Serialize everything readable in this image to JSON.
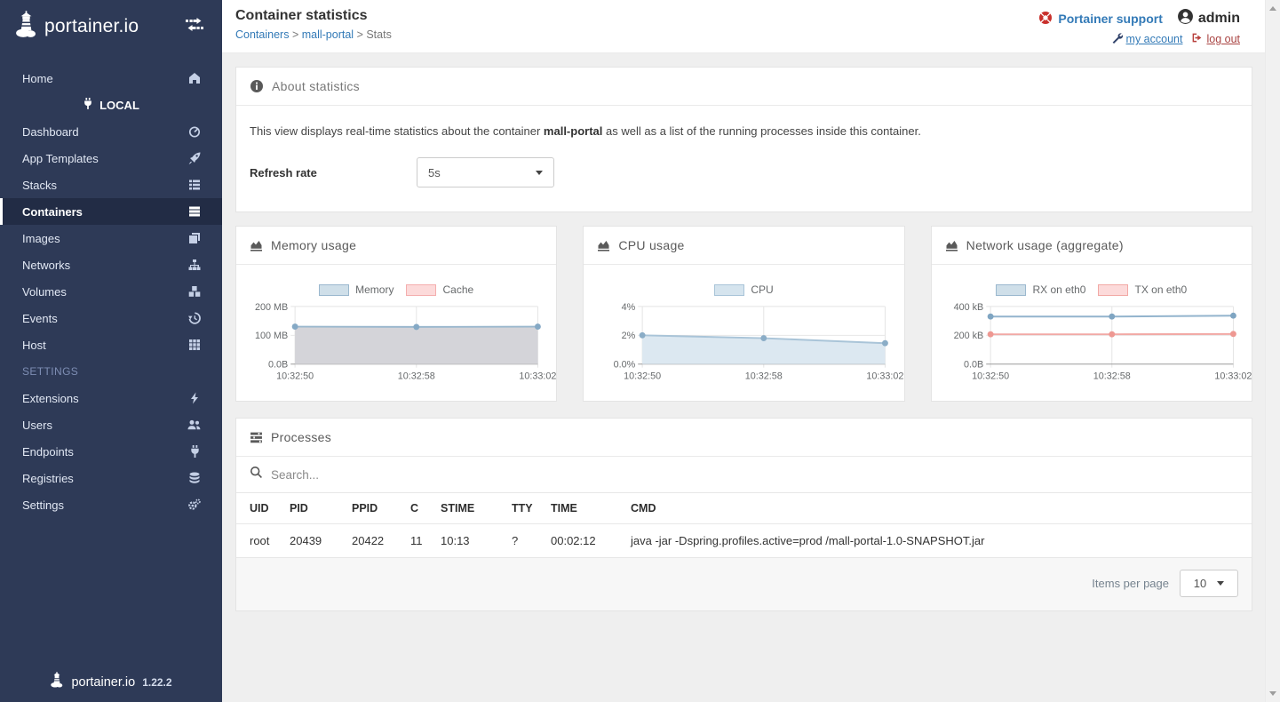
{
  "colors": {
    "sidebar_bg": "#2e3a57",
    "sidebar_active_bg": "#222c45",
    "link_blue": "#337ab7",
    "danger_red": "#a94442",
    "blue_series": "#9bb8ce",
    "red_series": "#f2a9a5"
  },
  "sidebar": {
    "brand": "portainer.io",
    "footer_brand": "portainer.io",
    "footer_version": "1.22.2",
    "items": [
      {
        "label": "Home",
        "icon": "home"
      },
      {
        "label": "LOCAL",
        "icon": "plug"
      },
      {
        "label": "Dashboard",
        "icon": "tachometer"
      },
      {
        "label": "App Templates",
        "icon": "rocket"
      },
      {
        "label": "Stacks",
        "icon": "th-list"
      },
      {
        "label": "Containers",
        "icon": "server",
        "active": true
      },
      {
        "label": "Images",
        "icon": "clone"
      },
      {
        "label": "Networks",
        "icon": "sitemap"
      },
      {
        "label": "Volumes",
        "icon": "cubes"
      },
      {
        "label": "Events",
        "icon": "history"
      },
      {
        "label": "Host",
        "icon": "th"
      },
      {
        "label": "SETTINGS",
        "icon": null
      },
      {
        "label": "Extensions",
        "icon": "bolt"
      },
      {
        "label": "Users",
        "icon": "users"
      },
      {
        "label": "Endpoints",
        "icon": "plug"
      },
      {
        "label": "Registries",
        "icon": "database"
      },
      {
        "label": "Settings",
        "icon": "cogs"
      }
    ]
  },
  "header": {
    "title": "Container statistics",
    "breadcrumb": [
      "Containers",
      "mall-portal",
      "Stats"
    ],
    "support_label": "Portainer support",
    "username": "admin",
    "my_account_label": "my account",
    "logout_label": "log out"
  },
  "about_panel": {
    "title": "About statistics",
    "description_prefix": "This view displays real-time statistics about the container ",
    "container_name": "mall-portal",
    "description_suffix": " as well as a list of the running processes inside this container.",
    "refresh_rate_label": "Refresh rate",
    "refresh_rate_value": "5s"
  },
  "chart_data": [
    {
      "id": "memory-usage",
      "type": "area",
      "title": "Memory usage",
      "x": [
        "10:32:50",
        "10:32:58",
        "10:33:02"
      ],
      "ymax": 200,
      "yticks": [
        "0.0B",
        "100 MB",
        "200 MB"
      ],
      "unit": "MB",
      "legend_position": "top",
      "grid": true,
      "series": [
        {
          "name": "Memory",
          "values": [
            130,
            129,
            130
          ],
          "line": "#9bb8ce",
          "dot": "#85a9c5",
          "fill": "#d4d4d9",
          "legend_fill": "#cfdfe9",
          "legend_border": "#9bb8ce"
        },
        {
          "name": "Cache",
          "values": [],
          "line": "#f4aeae",
          "dot": "#f09f9f",
          "fill": "none",
          "legend_fill": "#fcdada",
          "legend_border": "#f4aeae"
        }
      ]
    },
    {
      "id": "cpu-usage",
      "type": "area",
      "title": "CPU usage",
      "x": [
        "10:32:50",
        "10:32:58",
        "10:33:02"
      ],
      "ymax": 4,
      "yticks": [
        "0.0%",
        "2%",
        "4%"
      ],
      "unit": "%",
      "legend_position": "top",
      "grid": true,
      "series": [
        {
          "name": "CPU",
          "values": [
            2.0,
            1.8,
            1.45
          ],
          "line": "#a9c4d8",
          "dot": "#8badc7",
          "fill": "#dce8f1",
          "legend_fill": "#d5e4ee",
          "legend_border": "#a9c4d8"
        }
      ]
    },
    {
      "id": "network-usage",
      "type": "line",
      "title": "Network usage (aggregate)",
      "x": [
        "10:32:50",
        "10:32:58",
        "10:33:02"
      ],
      "ymax": 400,
      "yticks": [
        "0.0B",
        "200 kB",
        "400 kB"
      ],
      "unit": "kB",
      "legend_position": "top",
      "grid": true,
      "series": [
        {
          "name": "RX on eth0",
          "values": [
            330,
            330,
            336
          ],
          "line": "#93b4cd",
          "dot": "#7fa5c2",
          "fill": "none",
          "legend_fill": "#cfdfe9",
          "legend_border": "#9bb8ce"
        },
        {
          "name": "TX on eth0",
          "values": [
            207,
            207,
            209
          ],
          "line": "#f2a9a5",
          "dot": "#ee9892",
          "fill": "none",
          "legend_fill": "#fcdada",
          "legend_border": "#f2a9a5"
        }
      ]
    }
  ],
  "processes": {
    "title": "Processes",
    "search_placeholder": "Search...",
    "columns": [
      "UID",
      "PID",
      "PPID",
      "C",
      "STIME",
      "TTY",
      "TIME",
      "CMD"
    ],
    "rows": [
      [
        "root",
        "20439",
        "20422",
        "11",
        "10:13",
        "?",
        "00:02:12",
        "java -jar -Dspring.profiles.active=prod /mall-portal-1.0-SNAPSHOT.jar"
      ]
    ],
    "items_per_page_label": "Items per page",
    "items_per_page_value": "10"
  }
}
